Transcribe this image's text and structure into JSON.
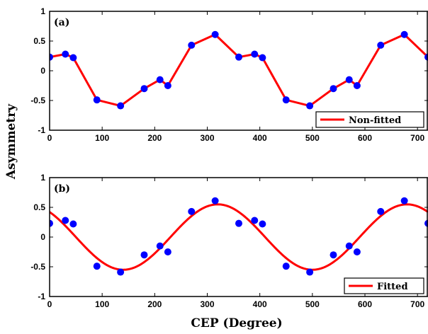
{
  "chart_data": [
    {
      "type": "line",
      "panel_label": "(a)",
      "legend": {
        "entries": [
          "Non-fitted"
        ],
        "position": "bottom-right"
      },
      "xlim": [
        0,
        720
      ],
      "ylim": [
        -1,
        1
      ],
      "x_ticks": [
        0,
        100,
        200,
        300,
        400,
        500,
        600,
        700
      ],
      "y_ticks": [
        1,
        0.5,
        0,
        -0.5,
        -1
      ],
      "series": [
        {
          "name": "Non-fitted",
          "color": "#ff0000",
          "marker_color": "#0000ff",
          "x": [
            0,
            30,
            45,
            90,
            135,
            180,
            210,
            225,
            270,
            315,
            360,
            390,
            405,
            450,
            495,
            540,
            570,
            585,
            630,
            675,
            720
          ],
          "y": [
            0.23,
            0.28,
            0.22,
            -0.49,
            -0.59,
            -0.3,
            -0.15,
            -0.25,
            0.43,
            0.61,
            0.23,
            0.28,
            0.22,
            -0.49,
            -0.59,
            -0.3,
            -0.15,
            -0.25,
            0.43,
            0.61,
            0.23
          ]
        }
      ]
    },
    {
      "type": "scatter",
      "panel_label": "(b)",
      "legend": {
        "entries": [
          "Fitted"
        ],
        "position": "bottom-right"
      },
      "xlim": [
        0,
        720
      ],
      "ylim": [
        -1,
        1
      ],
      "x_ticks": [
        0,
        100,
        200,
        300,
        400,
        500,
        600,
        700
      ],
      "y_ticks": [
        1,
        0.5,
        0,
        -0.5,
        -1
      ],
      "points": {
        "color": "#0000ff",
        "x": [
          0,
          30,
          45,
          90,
          135,
          180,
          210,
          225,
          270,
          315,
          360,
          390,
          405,
          450,
          495,
          540,
          570,
          585,
          630,
          675,
          720
        ],
        "y": [
          0.23,
          0.28,
          0.22,
          -0.49,
          -0.59,
          -0.3,
          -0.15,
          -0.25,
          0.43,
          0.61,
          0.23,
          0.28,
          0.22,
          -0.49,
          -0.59,
          -0.3,
          -0.15,
          -0.25,
          0.43,
          0.61,
          0.23
        ]
      },
      "fit": {
        "name": "Fitted",
        "color": "#ff0000",
        "function": "A*cos(2*pi*(x - phi)/360)",
        "A": 0.55,
        "phi": 320
      }
    }
  ],
  "xlabel": "CEP (Degree)",
  "ylabel": "Asymmetry"
}
